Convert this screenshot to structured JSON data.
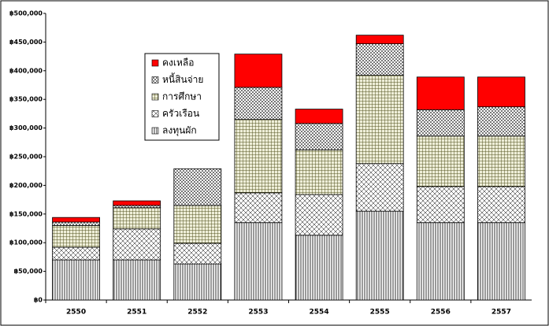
{
  "chart_data": {
    "type": "stacked-bar",
    "categories": [
      "2550",
      "2551",
      "2552",
      "2553",
      "2554",
      "2555",
      "2556",
      "2557"
    ],
    "series": [
      {
        "name": "ลงทุนผัก",
        "color": "#000000",
        "pattern": "vertical",
        "values": [
          70000,
          70000,
          63000,
          135000,
          113000,
          155000,
          135000,
          135000
        ]
      },
      {
        "name": "ครัวเรือน",
        "color": "#000000",
        "pattern": "cross",
        "values": [
          22000,
          54000,
          36000,
          52000,
          71000,
          83000,
          63000,
          63000
        ]
      },
      {
        "name": "การศึกษา",
        "color": "#666633",
        "pattern": "grid",
        "values": [
          38000,
          37000,
          66000,
          128000,
          78000,
          154000,
          88000,
          88000
        ]
      },
      {
        "name": "หนี้สินจ่าย",
        "color": "#333333",
        "pattern": "check",
        "values": [
          6000,
          4000,
          64000,
          56000,
          46000,
          55000,
          46000,
          51000
        ]
      },
      {
        "name": "คงเหลือ",
        "color": "#ff0000",
        "pattern": "solid",
        "values": [
          8000,
          8000,
          0,
          58000,
          25000,
          15000,
          57000,
          52000
        ]
      }
    ],
    "ylim": [
      0,
      500000
    ],
    "yticks": [
      {
        "value": 0,
        "label": "฿0"
      },
      {
        "value": 50000,
        "label": "฿50,000"
      },
      {
        "value": 100000,
        "label": "฿100,000"
      },
      {
        "value": 150000,
        "label": "฿150,000"
      },
      {
        "value": 200000,
        "label": "฿200,000"
      },
      {
        "value": 250000,
        "label": "฿250,000"
      },
      {
        "value": 300000,
        "label": "฿300,000"
      },
      {
        "value": 350000,
        "label": "฿350,000"
      },
      {
        "value": 400000,
        "label": "฿400,000"
      },
      {
        "value": 450000,
        "label": "฿450,000"
      },
      {
        "value": 500000,
        "label": "฿500,000"
      }
    ],
    "grid": false,
    "legend": "upper-left"
  }
}
